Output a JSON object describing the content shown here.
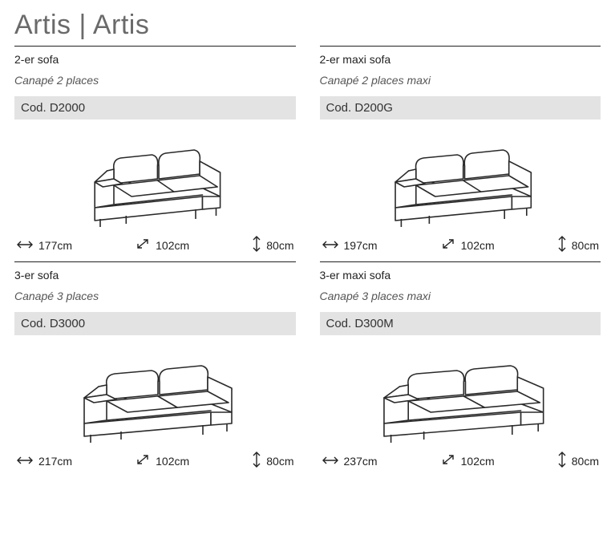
{
  "title": "Artis | Artis",
  "colors": {
    "text": "#3a3a3a",
    "titleText": "#6a6a6a",
    "rule": "#222222",
    "codeBg": "#e3e3e3",
    "background": "#ffffff",
    "sofaStroke": "#2a2a2a"
  },
  "products": [
    {
      "name_en": "2-er sofa",
      "name_fr": "Canapé 2 places",
      "code": "Cod. D2000",
      "width": "177cm",
      "depth": "102cm",
      "height": "80cm",
      "sofa_scale": 0.85
    },
    {
      "name_en": "2-er maxi sofa",
      "name_fr": "Canapé 2 places maxi",
      "code": "Cod. D200G",
      "width": "197cm",
      "depth": "102cm",
      "height": "80cm",
      "sofa_scale": 0.92
    },
    {
      "name_en": "3-er sofa",
      "name_fr": "Canapé 3 places",
      "code": "Cod. D3000",
      "width": "217cm",
      "depth": "102cm",
      "height": "80cm",
      "sofa_scale": 1.0
    },
    {
      "name_en": "3-er maxi sofa",
      "name_fr": "Canapé 3 places maxi",
      "code": "Cod. D300M",
      "width": "237cm",
      "depth": "102cm",
      "height": "80cm",
      "sofa_scale": 1.08
    }
  ]
}
